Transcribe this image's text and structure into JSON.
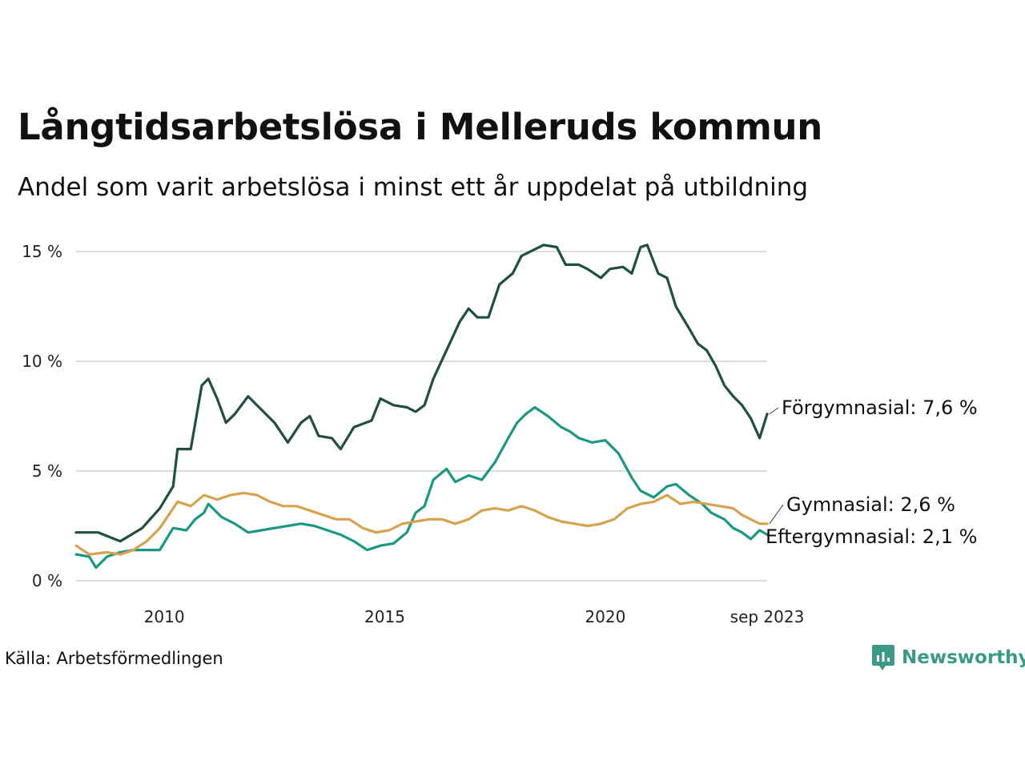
{
  "header": {
    "title": "Långtidsarbetslösa i Melleruds kommun",
    "subtitle": "Andel som varit arbetslösa i minst ett år uppdelat på utbildning"
  },
  "footer": {
    "source": "Källa: Arbetsförmedlingen",
    "brand": "Newsworthy"
  },
  "colors": {
    "forgymnasial": "#1f4e45",
    "eftergymnasial": "#1a9882",
    "gymnasial": "#d6a24e",
    "grid": "#dddddd"
  },
  "chart_data": {
    "type": "line",
    "title": "Långtidsarbetslösa i Melleruds kommun",
    "subtitle": "Andel som varit arbetslösa i minst ett år uppdelat på utbildning",
    "xlabel": "",
    "ylabel": "",
    "x_range": [
      2008.0,
      2023.67
    ],
    "ylim": [
      0,
      15
    ],
    "y_ticks": [
      0,
      5,
      10,
      15
    ],
    "y_tick_labels": [
      "0 %",
      "5 %",
      "10 %",
      "15 %"
    ],
    "x_ticks": [
      2010,
      2015,
      2020,
      2023.67
    ],
    "x_tick_labels": [
      "2010",
      "2015",
      "2020",
      "sep 2023"
    ],
    "grid": true,
    "series": [
      {
        "name": "Förgymnasial",
        "color_key": "forgymnasial",
        "end_label": "Förgymnasial: 7,6 %",
        "points": [
          [
            2008.0,
            2.2
          ],
          [
            2008.5,
            2.2
          ],
          [
            2009.0,
            1.8
          ],
          [
            2009.5,
            2.4
          ],
          [
            2009.9,
            3.3
          ],
          [
            2010.2,
            4.3
          ],
          [
            2010.3,
            6.0
          ],
          [
            2010.6,
            6.0
          ],
          [
            2010.85,
            8.9
          ],
          [
            2011.0,
            9.2
          ],
          [
            2011.2,
            8.3
          ],
          [
            2011.4,
            7.2
          ],
          [
            2011.6,
            7.6
          ],
          [
            2011.9,
            8.4
          ],
          [
            2012.2,
            7.8
          ],
          [
            2012.5,
            7.2
          ],
          [
            2012.8,
            6.3
          ],
          [
            2013.1,
            7.2
          ],
          [
            2013.3,
            7.5
          ],
          [
            2013.5,
            6.6
          ],
          [
            2013.8,
            6.5
          ],
          [
            2014.0,
            6.0
          ],
          [
            2014.3,
            7.0
          ],
          [
            2014.7,
            7.3
          ],
          [
            2014.9,
            8.3
          ],
          [
            2015.2,
            8.0
          ],
          [
            2015.5,
            7.9
          ],
          [
            2015.7,
            7.7
          ],
          [
            2015.9,
            8.0
          ],
          [
            2016.1,
            9.2
          ],
          [
            2016.4,
            10.5
          ],
          [
            2016.7,
            11.8
          ],
          [
            2016.9,
            12.4
          ],
          [
            2017.1,
            12.0
          ],
          [
            2017.35,
            12.0
          ],
          [
            2017.6,
            13.5
          ],
          [
            2017.9,
            14.0
          ],
          [
            2018.1,
            14.8
          ],
          [
            2018.4,
            15.1
          ],
          [
            2018.6,
            15.3
          ],
          [
            2018.9,
            15.2
          ],
          [
            2019.1,
            14.4
          ],
          [
            2019.4,
            14.4
          ],
          [
            2019.6,
            14.2
          ],
          [
            2019.9,
            13.8
          ],
          [
            2020.1,
            14.2
          ],
          [
            2020.4,
            14.3
          ],
          [
            2020.6,
            14.0
          ],
          [
            2020.8,
            15.2
          ],
          [
            2020.95,
            15.3
          ],
          [
            2021.2,
            14.0
          ],
          [
            2021.4,
            13.8
          ],
          [
            2021.6,
            12.5
          ],
          [
            2021.9,
            11.5
          ],
          [
            2022.1,
            10.8
          ],
          [
            2022.3,
            10.5
          ],
          [
            2022.5,
            9.8
          ],
          [
            2022.7,
            8.9
          ],
          [
            2022.9,
            8.4
          ],
          [
            2023.1,
            8.0
          ],
          [
            2023.3,
            7.4
          ],
          [
            2023.5,
            6.5
          ],
          [
            2023.67,
            7.6
          ]
        ]
      },
      {
        "name": "Gymnasial",
        "color_key": "gymnasial",
        "end_label": "Gymnasial: 2,6 %",
        "points": [
          [
            2008.0,
            1.6
          ],
          [
            2008.3,
            1.2
          ],
          [
            2008.7,
            1.3
          ],
          [
            2009.0,
            1.2
          ],
          [
            2009.3,
            1.4
          ],
          [
            2009.6,
            1.8
          ],
          [
            2009.9,
            2.4
          ],
          [
            2010.1,
            3.0
          ],
          [
            2010.3,
            3.6
          ],
          [
            2010.6,
            3.4
          ],
          [
            2010.9,
            3.9
          ],
          [
            2011.2,
            3.7
          ],
          [
            2011.5,
            3.9
          ],
          [
            2011.8,
            4.0
          ],
          [
            2012.1,
            3.9
          ],
          [
            2012.4,
            3.6
          ],
          [
            2012.7,
            3.4
          ],
          [
            2013.0,
            3.4
          ],
          [
            2013.3,
            3.2
          ],
          [
            2013.6,
            3.0
          ],
          [
            2013.9,
            2.8
          ],
          [
            2014.2,
            2.8
          ],
          [
            2014.5,
            2.4
          ],
          [
            2014.8,
            2.2
          ],
          [
            2015.1,
            2.3
          ],
          [
            2015.4,
            2.6
          ],
          [
            2015.7,
            2.7
          ],
          [
            2016.0,
            2.8
          ],
          [
            2016.3,
            2.8
          ],
          [
            2016.6,
            2.6
          ],
          [
            2016.9,
            2.8
          ],
          [
            2017.2,
            3.2
          ],
          [
            2017.5,
            3.3
          ],
          [
            2017.8,
            3.2
          ],
          [
            2018.1,
            3.4
          ],
          [
            2018.4,
            3.2
          ],
          [
            2018.7,
            2.9
          ],
          [
            2019.0,
            2.7
          ],
          [
            2019.3,
            2.6
          ],
          [
            2019.6,
            2.5
          ],
          [
            2019.9,
            2.6
          ],
          [
            2020.2,
            2.8
          ],
          [
            2020.5,
            3.3
          ],
          [
            2020.8,
            3.5
          ],
          [
            2021.1,
            3.6
          ],
          [
            2021.4,
            3.9
          ],
          [
            2021.7,
            3.5
          ],
          [
            2022.0,
            3.6
          ],
          [
            2022.3,
            3.5
          ],
          [
            2022.6,
            3.4
          ],
          [
            2022.9,
            3.3
          ],
          [
            2023.1,
            3.0
          ],
          [
            2023.3,
            2.8
          ],
          [
            2023.5,
            2.6
          ],
          [
            2023.67,
            2.6
          ]
        ]
      },
      {
        "name": "Eftergymnasial",
        "color_key": "eftergymnasial",
        "end_label": "Eftergymnasial: 2,1 %",
        "points": [
          [
            2008.0,
            1.2
          ],
          [
            2008.3,
            1.1
          ],
          [
            2008.45,
            0.6
          ],
          [
            2008.7,
            1.1
          ],
          [
            2009.0,
            1.3
          ],
          [
            2009.3,
            1.4
          ],
          [
            2009.6,
            1.4
          ],
          [
            2009.9,
            1.4
          ],
          [
            2010.2,
            2.4
          ],
          [
            2010.5,
            2.3
          ],
          [
            2010.7,
            2.8
          ],
          [
            2010.9,
            3.1
          ],
          [
            2011.0,
            3.5
          ],
          [
            2011.3,
            2.9
          ],
          [
            2011.6,
            2.6
          ],
          [
            2011.9,
            2.2
          ],
          [
            2012.2,
            2.3
          ],
          [
            2012.5,
            2.4
          ],
          [
            2012.8,
            2.5
          ],
          [
            2013.1,
            2.6
          ],
          [
            2013.4,
            2.5
          ],
          [
            2013.7,
            2.3
          ],
          [
            2014.0,
            2.1
          ],
          [
            2014.3,
            1.8
          ],
          [
            2014.6,
            1.4
          ],
          [
            2014.9,
            1.6
          ],
          [
            2015.2,
            1.7
          ],
          [
            2015.5,
            2.2
          ],
          [
            2015.7,
            3.1
          ],
          [
            2015.9,
            3.4
          ],
          [
            2016.1,
            4.6
          ],
          [
            2016.4,
            5.1
          ],
          [
            2016.6,
            4.5
          ],
          [
            2016.9,
            4.8
          ],
          [
            2017.2,
            4.6
          ],
          [
            2017.5,
            5.4
          ],
          [
            2017.8,
            6.5
          ],
          [
            2018.0,
            7.2
          ],
          [
            2018.2,
            7.6
          ],
          [
            2018.4,
            7.9
          ],
          [
            2018.7,
            7.5
          ],
          [
            2019.0,
            7.0
          ],
          [
            2019.2,
            6.8
          ],
          [
            2019.4,
            6.5
          ],
          [
            2019.7,
            6.3
          ],
          [
            2020.0,
            6.4
          ],
          [
            2020.3,
            5.8
          ],
          [
            2020.6,
            4.7
          ],
          [
            2020.8,
            4.1
          ],
          [
            2021.1,
            3.8
          ],
          [
            2021.4,
            4.3
          ],
          [
            2021.6,
            4.4
          ],
          [
            2021.9,
            3.9
          ],
          [
            2022.2,
            3.5
          ],
          [
            2022.4,
            3.1
          ],
          [
            2022.7,
            2.8
          ],
          [
            2022.9,
            2.4
          ],
          [
            2023.1,
            2.2
          ],
          [
            2023.3,
            1.9
          ],
          [
            2023.5,
            2.3
          ],
          [
            2023.67,
            2.1
          ]
        ]
      }
    ]
  }
}
